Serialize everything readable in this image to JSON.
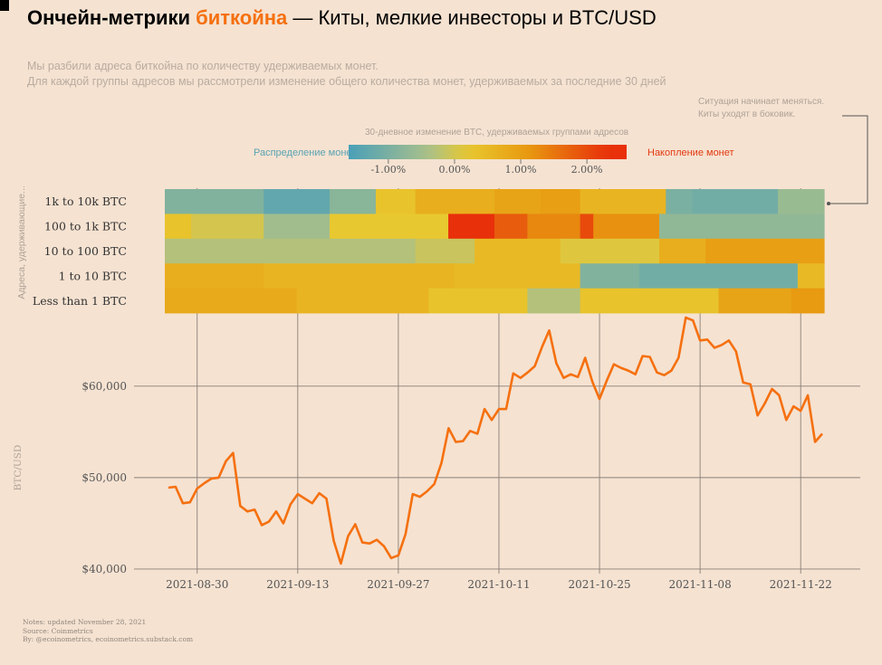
{
  "title": {
    "part1": "Ончейн-метрики ",
    "accent": "биткойна",
    "part2": " — Киты, мелкие инвесторы и BTC/USD"
  },
  "subtitle": {
    "line1": "Мы разбили адреса биткойна по количеству удерживаемых монет.",
    "line2": "Для каждой группы адресов мы рассмотрели изменение общего количества монет, удерживаемых за последние 30 дней"
  },
  "annotation": {
    "line1": "Ситуация начинает меняться.",
    "line2": "Киты уходят в боковик."
  },
  "legend": {
    "title": "30-дневное изменение BTC, удерживаемых группами адресов",
    "left_label": "Распределение монет",
    "right_label": "Накопление монет",
    "ticks": [
      "-1.00%",
      "0.00%",
      "1.00%",
      "2.00%"
    ],
    "tick_values": [
      -1,
      0,
      1,
      2
    ],
    "range": [
      -1.6,
      2.6
    ]
  },
  "colors": {
    "accent": "#f5700f",
    "price_line": "#f5700f",
    "background": "#f5e2d1",
    "neg": "#4a9fb8",
    "neutral": "#a9c08a",
    "zero": "#e8c830",
    "pos": "#e89a10",
    "strong": "#e8300a"
  },
  "chart_data": [
    {
      "type": "heatmap",
      "ylabel": "Адреса, удерживающие...",
      "rows": [
        "1k to 10k BTC",
        "100 to 1k BTC",
        "10 to 100 BTC",
        "1 to 10 BTC",
        "Less than 1 BTC"
      ],
      "segments": [
        [
          [
            0,
            15,
            -0.9
          ],
          [
            15,
            25,
            -1.3
          ],
          [
            25,
            32,
            -0.8
          ],
          [
            32,
            38,
            0.3
          ],
          [
            38,
            50,
            0.7
          ],
          [
            50,
            57,
            0.9
          ],
          [
            57,
            63,
            1.0
          ],
          [
            63,
            76,
            0.6
          ],
          [
            76,
            80,
            -1.0
          ],
          [
            80,
            93,
            -1.1
          ],
          [
            93,
            100,
            -0.6
          ]
        ],
        [
          [
            0,
            4,
            0.3
          ],
          [
            4,
            15,
            0.0
          ],
          [
            15,
            25,
            -0.5
          ],
          [
            25,
            43,
            0.2
          ],
          [
            43,
            46,
            2.3
          ],
          [
            46,
            50,
            2.5
          ],
          [
            50,
            55,
            1.8
          ],
          [
            55,
            63,
            1.3
          ],
          [
            63,
            65,
            2.0
          ],
          [
            65,
            75,
            1.2
          ],
          [
            75,
            100,
            -0.7
          ]
        ],
        [
          [
            0,
            38,
            -0.3
          ],
          [
            38,
            47,
            -0.1
          ],
          [
            47,
            60,
            0.5
          ],
          [
            60,
            75,
            0.1
          ],
          [
            75,
            82,
            0.7
          ],
          [
            82,
            100,
            1.0
          ]
        ],
        [
          [
            0,
            15,
            0.7
          ],
          [
            15,
            44,
            0.6
          ],
          [
            44,
            63,
            0.5
          ],
          [
            63,
            72,
            -0.9
          ],
          [
            72,
            96,
            -1.1
          ],
          [
            96,
            100,
            0.5
          ]
        ],
        [
          [
            0,
            20,
            0.8
          ],
          [
            20,
            40,
            0.6
          ],
          [
            40,
            55,
            0.3
          ],
          [
            55,
            63,
            -0.3
          ],
          [
            63,
            84,
            0.3
          ],
          [
            84,
            95,
            0.9
          ],
          [
            95,
            100,
            1.1
          ]
        ]
      ]
    },
    {
      "type": "line",
      "ylabel": "BTC/USD",
      "x_start": "2021-08-26",
      "xticks": [
        "2021-08-30",
        "2021-09-13",
        "2021-09-27",
        "2021-10-11",
        "2021-10-25",
        "2021-11-08",
        "2021-11-22"
      ],
      "yticks": [
        "$40,000",
        "$50,000",
        "$60,000"
      ],
      "ytick_values": [
        40000,
        50000,
        60000
      ],
      "ylim": [
        39500,
        67800
      ],
      "values": [
        48900,
        49000,
        47200,
        47300,
        48800,
        49400,
        49900,
        50000,
        51800,
        52700,
        46900,
        46300,
        46500,
        44800,
        45200,
        46300,
        45000,
        47100,
        48200,
        47700,
        47200,
        48300,
        47700,
        43100,
        40600,
        43600,
        44900,
        42900,
        42800,
        43200,
        42500,
        41200,
        41500,
        43800,
        48200,
        47900,
        48500,
        49300,
        51600,
        55400,
        53900,
        54000,
        55100,
        54800,
        57500,
        56300,
        57500,
        57500,
        61400,
        60900,
        61500,
        62200,
        64300,
        66100,
        62500,
        60900,
        61300,
        61000,
        63100,
        60500,
        58600,
        60600,
        62400,
        62000,
        61700,
        61300,
        63300,
        63200,
        61500,
        61200,
        61700,
        63100,
        67500,
        67200,
        65000,
        65100,
        64200,
        64500,
        65000,
        63800,
        60400,
        60200,
        56800,
        58100,
        59700,
        59000,
        56300,
        57800,
        57300,
        59000,
        53900,
        54800
      ]
    }
  ],
  "footer": {
    "line1": "Notes: updated November 28, 2021",
    "line2": "Source: Coinmetrics",
    "line3": "By: @ecoinometrics, ecoinometrics.substack.com"
  }
}
